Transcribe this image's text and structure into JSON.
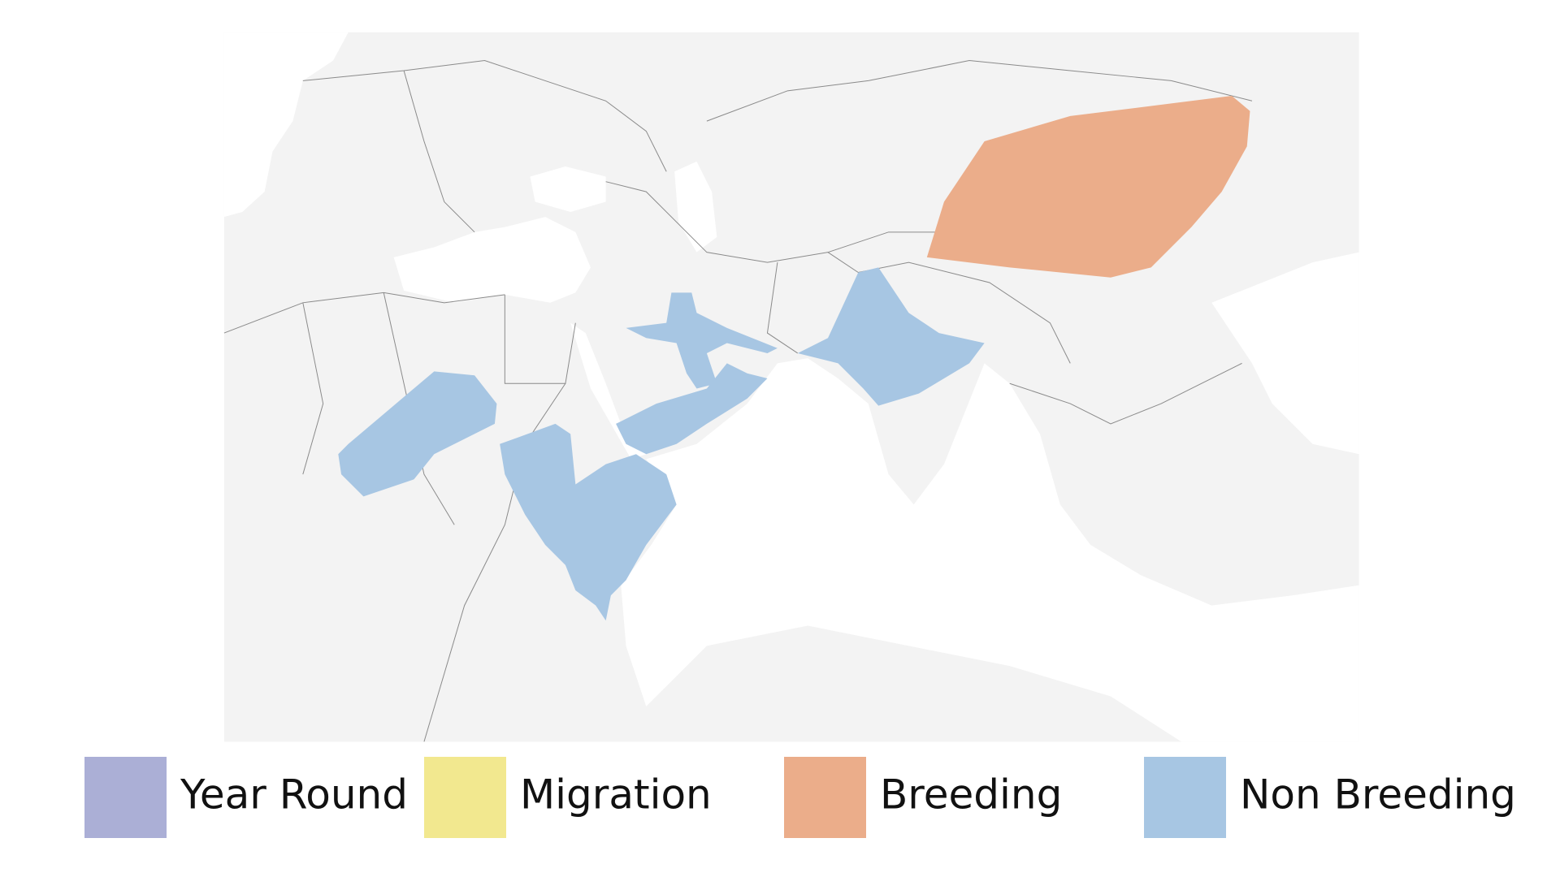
{
  "legend": [
    {
      "label": "Year Round",
      "color": "#abafd6"
    },
    {
      "label": "Migration",
      "color": "#f2e88f"
    },
    {
      "label": "Breeding",
      "color": "#ebad8a"
    },
    {
      "label": "Non Breeding",
      "color": "#a7c6e3"
    }
  ]
}
